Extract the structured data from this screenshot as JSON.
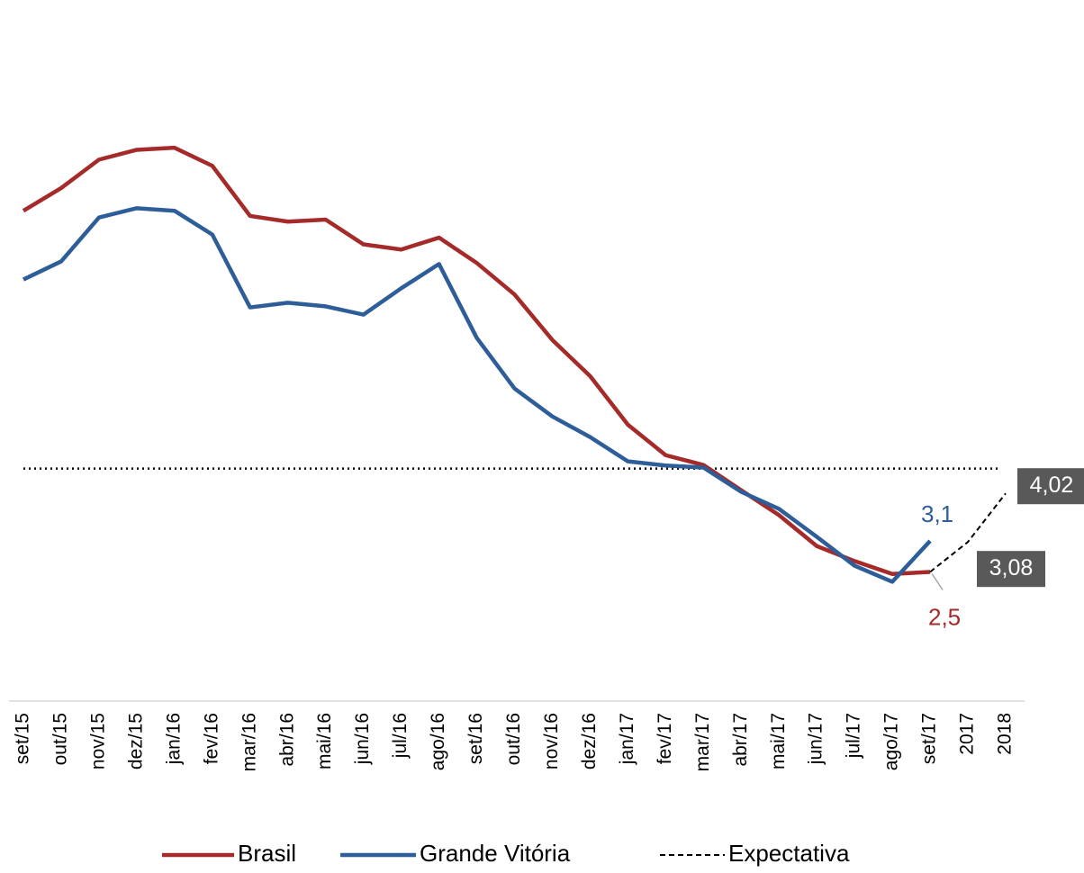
{
  "chart_data": {
    "type": "line",
    "categories": [
      "set/15",
      "out/15",
      "nov/15",
      "dez/15",
      "jan/16",
      "fev/16",
      "mar/16",
      "abr/16",
      "mai/16",
      "jun/16",
      "jul/16",
      "ago/16",
      "set/16",
      "out/16",
      "nov/16",
      "dez/16",
      "jan/17",
      "fev/17",
      "mar/17",
      "abr/17",
      "mai/17",
      "jun/17",
      "jul/17",
      "ago/17",
      "set/17",
      "2017",
      "2018"
    ],
    "ylim": [
      0,
      13.5
    ],
    "reference_line": 4.5,
    "series": [
      {
        "name": "Brasil",
        "color": "#a52a2a",
        "style": "solid",
        "values": [
          9.49,
          9.93,
          10.48,
          10.67,
          10.71,
          10.36,
          9.39,
          9.28,
          9.32,
          8.84,
          8.74,
          8.97,
          8.48,
          7.87,
          6.99,
          6.29,
          5.35,
          4.76,
          4.57,
          4.08,
          3.6,
          3.0,
          2.71,
          2.46,
          2.5,
          null,
          null
        ],
        "value_labels": [
          null,
          null,
          null,
          null,
          null,
          null,
          null,
          null,
          null,
          null,
          null,
          null,
          null,
          null,
          null,
          null,
          null,
          null,
          null,
          null,
          null,
          null,
          null,
          null,
          "2,5",
          null,
          null
        ]
      },
      {
        "name": "Grande Vitória",
        "color": "#2e5e99",
        "style": "solid",
        "values": [
          8.16,
          8.51,
          9.36,
          9.54,
          9.49,
          9.03,
          7.62,
          7.71,
          7.64,
          7.48,
          7.99,
          8.46,
          7.03,
          6.05,
          5.51,
          5.11,
          4.64,
          4.56,
          4.52,
          4.05,
          3.72,
          3.18,
          2.62,
          2.31,
          3.1,
          null,
          null
        ],
        "value_labels": [
          null,
          null,
          null,
          null,
          null,
          null,
          null,
          null,
          null,
          null,
          null,
          null,
          null,
          null,
          null,
          null,
          null,
          null,
          null,
          null,
          null,
          null,
          null,
          null,
          "3,1",
          null,
          null
        ]
      },
      {
        "name": "Expectativa",
        "color": "#000000",
        "style": "dashed",
        "values": [
          null,
          null,
          null,
          null,
          null,
          null,
          null,
          null,
          null,
          null,
          null,
          null,
          null,
          null,
          null,
          null,
          null,
          null,
          null,
          null,
          null,
          null,
          null,
          null,
          2.5,
          3.08,
          4.02
        ],
        "value_labels": [
          null,
          null,
          null,
          null,
          null,
          null,
          null,
          null,
          null,
          null,
          null,
          null,
          null,
          null,
          null,
          null,
          null,
          null,
          null,
          null,
          null,
          null,
          null,
          null,
          null,
          "3,08",
          "4,02"
        ]
      }
    ]
  }
}
